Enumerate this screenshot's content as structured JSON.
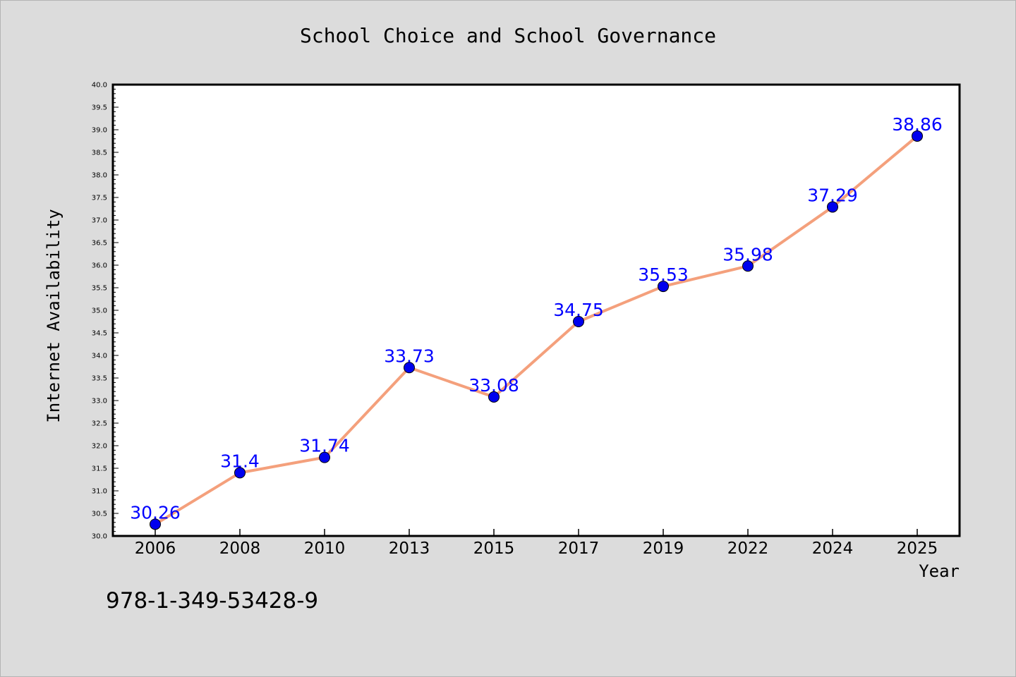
{
  "chart_data": {
    "type": "line",
    "title": "School Choice and School Governance",
    "xlabel": "Year",
    "ylabel": "Internet Availability",
    "categories": [
      "2006",
      "2008",
      "2010",
      "2013",
      "2015",
      "2017",
      "2019",
      "2022",
      "2024",
      "2025"
    ],
    "series": [
      {
        "values": [
          30.26,
          31.4,
          31.74,
          33.73,
          33.08,
          34.75,
          35.53,
          35.98,
          37.29,
          38.86
        ]
      }
    ],
    "data_labels": [
      "30.26",
      "31.4",
      "31.74",
      "33.73",
      "33.08",
      "34.75",
      "35.53",
      "35.98",
      "37.29",
      "38.86"
    ],
    "ylim": [
      30.0,
      40.0
    ],
    "yticks": [
      "30.0",
      "30.5",
      "31.0",
      "31.5",
      "32.0",
      "32.5",
      "33.0",
      "33.5",
      "34.0",
      "34.5",
      "35.0",
      "35.5",
      "36.0",
      "36.5",
      "37.0",
      "37.5",
      "38.0",
      "38.5",
      "39.0",
      "39.5",
      "40.0"
    ],
    "grid": false,
    "colors": {
      "line": "#f4a07c",
      "marker": "#0000ee",
      "label": "#0000ff",
      "background": "#dcdcdc",
      "plot_background": "#ffffff"
    }
  },
  "annotation": "978-1-349-53428-9"
}
